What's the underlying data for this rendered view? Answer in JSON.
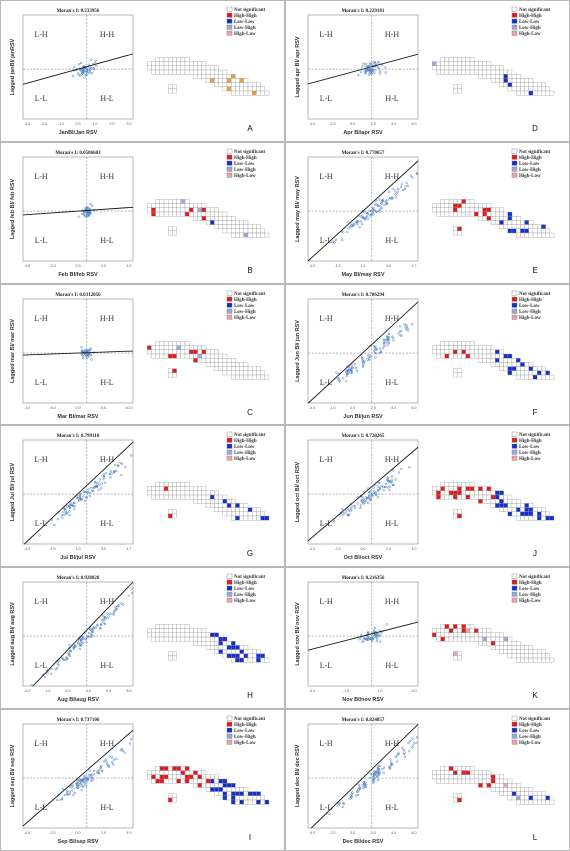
{
  "legend": {
    "items": [
      {
        "label": "Not significant",
        "color": "#ffffff"
      },
      {
        "label": "High-High",
        "color": "#e31a1c"
      },
      {
        "label": "Low-Low",
        "color": "#1430c8"
      },
      {
        "label": "Low-High",
        "color": "#9aa8e0"
      },
      {
        "label": "High-Low",
        "color": "#f2a0a0"
      }
    ]
  },
  "quadrant_labels": {
    "lh": "L-H",
    "hh": "H-H",
    "ll": "L-L",
    "hl": "H-L"
  },
  "colors": {
    "scatter_point": "#4a7fc0",
    "regression_line": "#1a1a1a",
    "dashed_axis": "#8a8a8a",
    "border": "#b9b9b9"
  },
  "chart_data": [
    {
      "panel": "A",
      "type": "scatter",
      "moran_text": "Moran's I: 0.233956",
      "moran_i": 0.233956,
      "xlabel": "JanBI/Jan RSV",
      "ylabel": "Lagged janBI/ janRSV",
      "xticks": [
        "-3.0",
        "-2.0",
        "-1.0",
        "0.0",
        "1.0",
        "2.0",
        "3.0"
      ],
      "hh": 0,
      "ll": 0,
      "lh": 0,
      "hl": 0,
      "accent": "#f0a030"
    },
    {
      "panel": "D",
      "type": "scatter",
      "moran_text": "Moran's I: 0.229181",
      "moran_i": 0.229181,
      "xlabel": "Apr BI/apr RSV",
      "ylabel": "Lagged apr BI/ apr RSV",
      "xticks": [
        "-4.0",
        "-2.0",
        "0.0",
        "2.0",
        "4.0",
        "6.0"
      ],
      "hh": 1,
      "ll": 4,
      "lh": 1,
      "hl": 0,
      "accent": ""
    },
    {
      "panel": "B",
      "type": "scatter",
      "moran_text": "Moran's I: 0.0586603",
      "moran_i": 0.0586603,
      "xlabel": "Feb BI/feb RSV",
      "ylabel": "Lagged feb BI/ feb RSV",
      "xticks": [
        "-4.0",
        "-2.0",
        "0.0",
        "2.0",
        "4.0"
      ],
      "hh": 6,
      "ll": 1,
      "lh": 3,
      "hl": 0,
      "accent": ""
    },
    {
      "panel": "E",
      "type": "scatter",
      "moran_text": "Moran's I: 0.770657",
      "moran_i": 0.770657,
      "xlabel": "May BI/may RSV",
      "ylabel": "Lagged may BI/ may RSV",
      "xticks": [
        "-4.0",
        "-1.0",
        "1.0",
        "3.0",
        "4.7"
      ],
      "hh": 12,
      "ll": 10,
      "lh": 0,
      "hl": 0,
      "accent": ""
    },
    {
      "panel": "C",
      "type": "scatter",
      "moran_text": "Moran's I: 0.0312056",
      "moran_i": 0.0312056,
      "xlabel": "Mar BI/mar RSV",
      "ylabel": "Lagged mar BI/ mar RSV",
      "xticks": [
        "-10",
        "-5.0",
        "0.0",
        "5.0",
        "10.0"
      ],
      "hh": 8,
      "ll": 0,
      "lh": 2,
      "hl": 0,
      "accent": ""
    },
    {
      "panel": "F",
      "type": "scatter",
      "moran_text": "Moran's I: 0.786294",
      "moran_i": 0.786294,
      "xlabel": "Jun BI/jun RSV",
      "ylabel": "Lagged Jun BI/ jun RSV",
      "xticks": [
        "-4.0",
        "-1.0",
        "0.0",
        "2.0",
        "4.0",
        "6.0"
      ],
      "hh": 5,
      "ll": 14,
      "lh": 0,
      "hl": 0,
      "accent": ""
    },
    {
      "panel": "G",
      "type": "scatter",
      "moran_text": "Moran's I: 0.799118",
      "moran_i": 0.799118,
      "xlabel": "Jul BI/jul RSV",
      "ylabel": "Lagged Jul BI/ jul RSV",
      "xticks": [
        "-3.0",
        "-1.0",
        "1.0",
        "3.0",
        "4.7"
      ],
      "hh": 2,
      "ll": 10,
      "lh": 0,
      "hl": 0,
      "accent": ""
    },
    {
      "panel": "J",
      "type": "scatter",
      "moran_text": "Moran's I: 0.720265",
      "moran_i": 0.720265,
      "xlabel": "Oct BI/oct RSV",
      "ylabel": "Lagged oct BI/ oct RSV",
      "xticks": [
        "-4.0",
        "-2.0",
        "0.0",
        "2.0",
        "4.0"
      ],
      "hh": 20,
      "ll": 22,
      "lh": 0,
      "hl": 0,
      "accent": ""
    },
    {
      "panel": "H",
      "type": "scatter",
      "moran_text": "Moran's I: 0.928028",
      "moran_i": 0.928028,
      "xlabel": "Aug BI/aug RSV",
      "ylabel": "Lagged aug BI/ aug RSV",
      "xticks": [
        "-4.0",
        "-1.0",
        "2.0",
        "4.0",
        "6.0",
        "8.0"
      ],
      "hh": 0,
      "ll": 24,
      "lh": 0,
      "hl": 0,
      "accent": ""
    },
    {
      "panel": "K",
      "type": "scatter",
      "moran_text": "Moran's I: 0.216356",
      "moran_i": 0.216356,
      "xlabel": "Nov BI/nov RSV",
      "ylabel": "Lagged nov BI/ nov RSV",
      "xticks": [
        "-3.0",
        "-1.0",
        "1.0",
        "3.0"
      ],
      "hh": 10,
      "ll": 0,
      "lh": 2,
      "hl": 2,
      "accent": ""
    },
    {
      "panel": "I",
      "type": "scatter",
      "moran_text": "Moran's I: 0.737106",
      "moran_i": 0.737106,
      "xlabel": "Sep BI/sep RSV",
      "ylabel": "Lagged sep BI/ sep RSV",
      "xticks": [
        "-4.0",
        "-2.0",
        "0.0",
        "2.0",
        "4.0"
      ],
      "hh": 20,
      "ll": 26,
      "lh": 0,
      "hl": 0,
      "accent": ""
    },
    {
      "panel": "L",
      "type": "scatter",
      "moran_text": "Moran's I: 0.824857",
      "moran_i": 0.824857,
      "xlabel": "Dec BI/dec RSV",
      "ylabel": "Lagged dec BI/ dec RSV",
      "xticks": [
        "-4.0",
        "-2.0",
        "0.0",
        "2.0",
        "4.0",
        "6.0"
      ],
      "hh": 12,
      "ll": 3,
      "lh": 1,
      "hl": 1,
      "accent": ""
    }
  ]
}
